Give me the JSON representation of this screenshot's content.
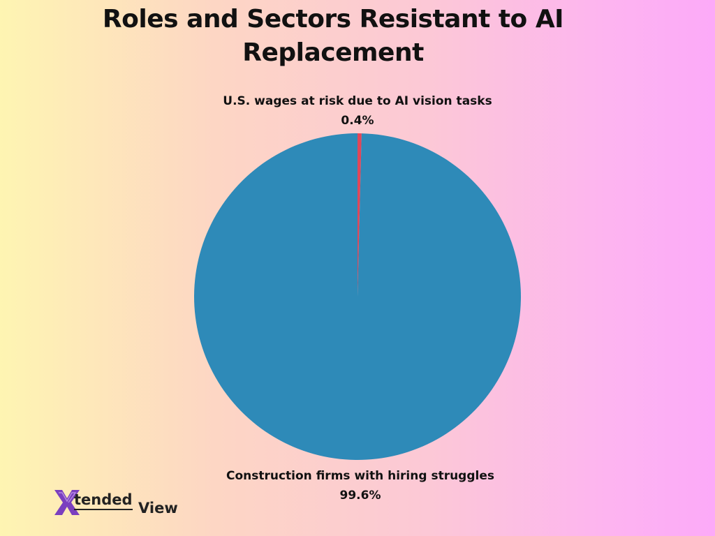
{
  "chart_data": {
    "type": "pie",
    "title_lines": [
      "Roles and Sectors Resistant to AI",
      "Replacement"
    ],
    "slices": [
      {
        "label": "U.S. wages at risk due to AI vision tasks",
        "value": 0.4,
        "value_text": "0.4%",
        "color": "#e0475a"
      },
      {
        "label": "Construction firms with hiring struggles",
        "value": 99.6,
        "value_text": "99.6%",
        "color": "#2e8ab8"
      }
    ],
    "start_angle": "top",
    "direction": "clockwise",
    "legend": "none"
  },
  "logo": {
    "mark": "X",
    "text_1": "tended",
    "text_2": "View",
    "mark_color": "#7b3fbf"
  }
}
